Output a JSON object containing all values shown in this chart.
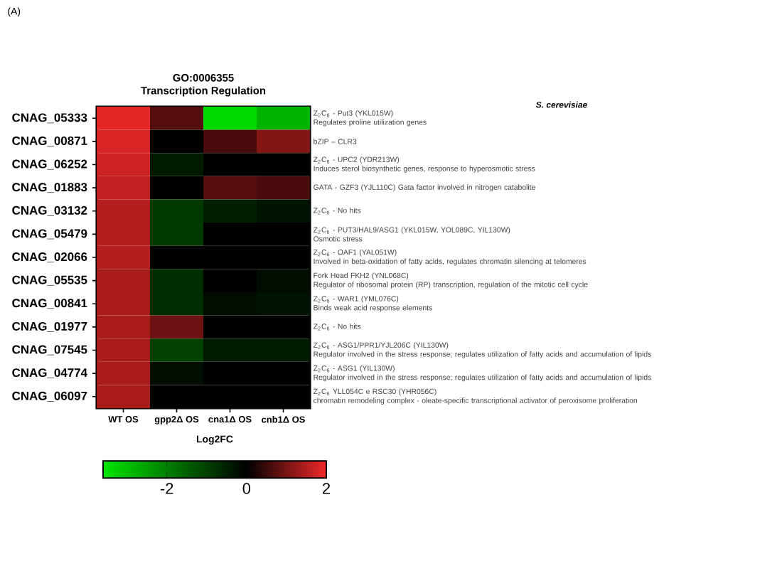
{
  "chart_data": {
    "type": "heatmap",
    "title": "GO:0006355",
    "subtitle": "Transcription Regulation",
    "clabel": "Log2FC",
    "annotations": [
      "(A)",
      "S. cerevisiae"
    ],
    "categories": [
      "WT OS",
      "gpp2Δ OS",
      "cna1Δ OS",
      "cnb1Δ OS"
    ],
    "y_categories": [
      "CNAG_05333",
      "CNAG_00871",
      "CNAG_06252",
      "CNAG_01883",
      "CNAG_03132",
      "CNAG_05479",
      "CNAG_02066",
      "CNAG_05535",
      "CNAG_00841",
      "CNAG_01977",
      "CNAG_07545",
      "CNAG_04774",
      "CNAG_06097"
    ],
    "y2_categories": [
      "Z$_{2}$C$_{6}$ - Put3 (YKL015W)\nRegulates proline utilization genes",
      "bZIP – CLR3",
      "Z$_{2}$C$_{6}$ - UPC2 (YDR213W)\nInduces sterol biosynthetic genes, response to hyperosmotic stress",
      "GATA - GZF3 (YJL110C) Gata factor involved in nitrogen catabolite",
      "Z$_{2}$C$_{6}$ - No hits",
      "Z$_{2}$C$_{6}$ - PUT3/HAL9/ASG1 (YKL015W, YOL089C, YIL130W)\nOsmotic stress",
      "Z$_{2}$C$_{6}$ - OAF1 (YAL051W)\nInvolved in beta-oxidation of fatty acids, regulates chromatin silencing at telomeres",
      "Fork Head FKH2 (YNL068C)\nRegulator of ribosomal protein (RP) transcription, regulation of the mitotic cell cycle",
      "Z$_{2}$C$_{6}$ - WAR1 (YML076C)\nBinds weak acid response elements",
      "Z$_{2}$C$_{6}$ - No hits",
      "Z$_{2}$C$_{6}$ - ASG1/PPR1/YJL206C (YIL130W)\nRegulator involved in the stress response; regulates utilization of fatty acids and accumulation of lipids",
      "Z$_{2}$C$_{6}$ - ASG1 (YIL130W)\nRegulator involved in the stress response; regulates utilization of fatty acids and accumulation of lipids",
      "Z$_{2}$C$_{6}$ YLL054C e RSC30 (YHR056C)\nchromatin remodeling complex - oleate-specific transcriptional activator of peroxisome proliferation"
    ],
    "cells": [
      [
        1.9,
        0.7,
        -3.4,
        -2.8
      ],
      [
        1.8,
        0,
        0.6,
        1.1
      ],
      [
        1.7,
        -0.4,
        0,
        0
      ],
      [
        1.6,
        0,
        0.7,
        0.6
      ],
      [
        1.5,
        -0.9,
        -0.5,
        -0.3
      ],
      [
        1.5,
        -0.9,
        0,
        0
      ],
      [
        1.5,
        0,
        0,
        0
      ],
      [
        1.4,
        -0.7,
        0,
        -0.2
      ],
      [
        1.4,
        -0.7,
        -0.2,
        -0.3
      ],
      [
        1.4,
        0.9,
        0,
        0
      ],
      [
        1.4,
        -1.0,
        -0.4,
        -0.4
      ],
      [
        1.4,
        -0.2,
        0,
        0
      ],
      [
        1.4,
        0,
        0,
        0
      ]
    ],
    "clim": [
      -3.6,
      2
    ],
    "cticks": [
      -2,
      0,
      2
    ]
  }
}
